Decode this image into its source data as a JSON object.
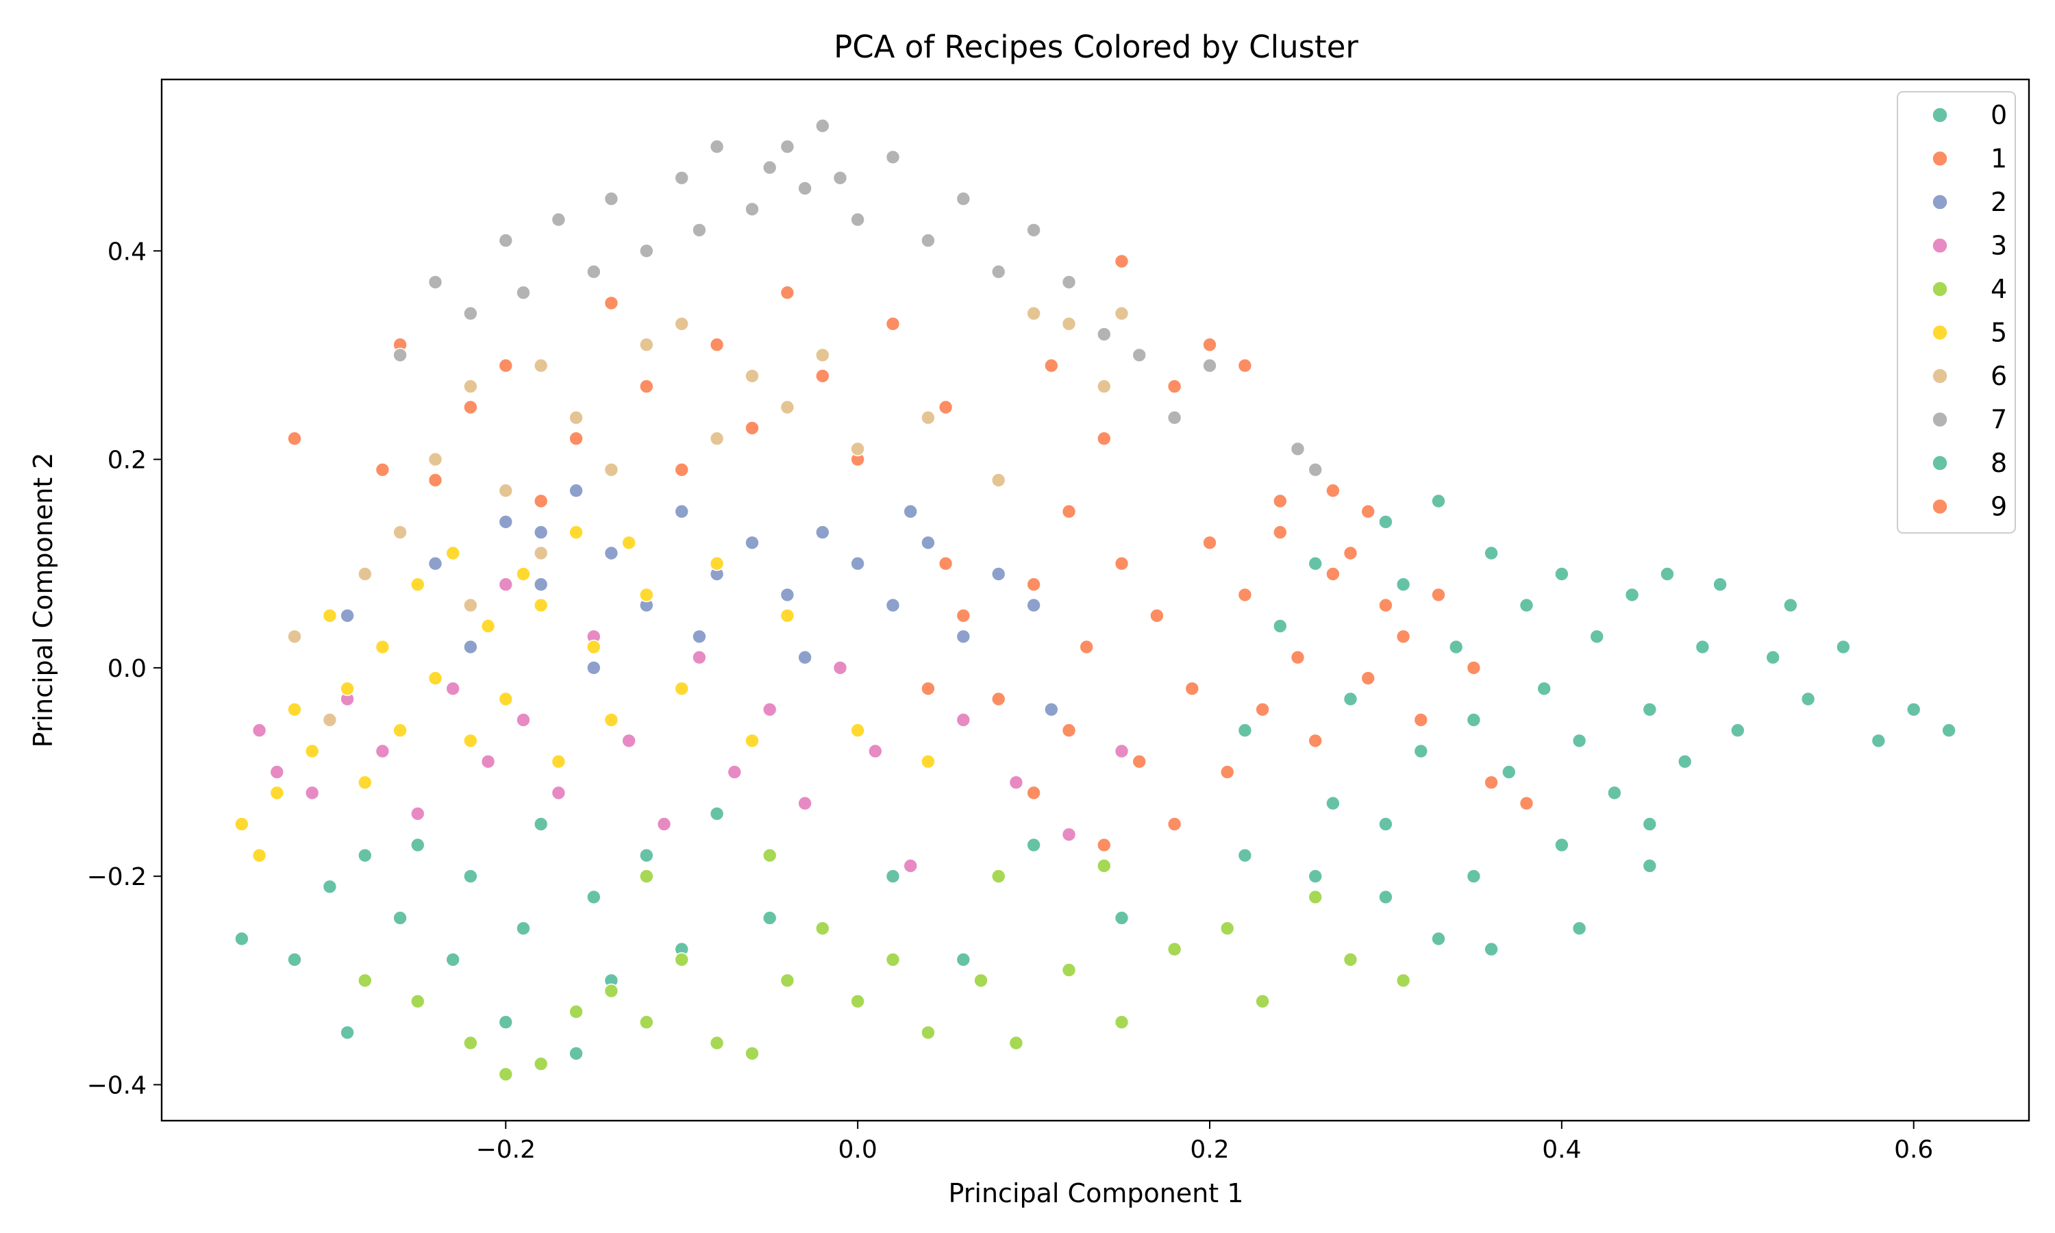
{
  "chart_data": {
    "type": "scatter",
    "title": "PCA of Recipes Colored by Cluster",
    "xlabel": "Principal Component 1",
    "ylabel": "Principal Component 2",
    "xlim": [
      -0.3955,
      0.6655
    ],
    "ylim": [
      -0.4345,
      0.5645
    ],
    "xticks": [
      -0.2,
      0.0,
      0.2,
      0.4,
      0.6
    ],
    "xtick_labels": [
      "−0.2",
      "0.0",
      "0.2",
      "0.4",
      "0.6"
    ],
    "yticks": [
      -0.4,
      -0.2,
      0.0,
      0.2,
      0.4
    ],
    "ytick_labels": [
      "−0.4",
      "−0.2",
      "0.0",
      "0.2",
      "0.4"
    ],
    "grid": false,
    "legend_position": "top-right",
    "point_edge_color": "#ffffff",
    "series": [
      {
        "name": "0",
        "color": "#66c2a5",
        "points": [
          [
            -0.35,
            -0.26
          ],
          [
            -0.32,
            -0.28
          ],
          [
            -0.29,
            -0.35
          ],
          [
            -0.3,
            -0.21
          ],
          [
            -0.28,
            -0.18
          ],
          [
            -0.26,
            -0.24
          ],
          [
            -0.25,
            -0.17
          ],
          [
            -0.23,
            -0.28
          ],
          [
            -0.22,
            -0.2
          ],
          [
            -0.2,
            -0.34
          ],
          [
            -0.19,
            -0.25
          ],
          [
            -0.18,
            -0.15
          ],
          [
            -0.16,
            -0.37
          ],
          [
            -0.15,
            -0.22
          ],
          [
            -0.14,
            -0.3
          ],
          [
            -0.12,
            -0.18
          ],
          [
            -0.1,
            -0.27
          ],
          [
            -0.08,
            -0.14
          ],
          [
            -0.05,
            -0.24
          ],
          [
            0.02,
            -0.2
          ],
          [
            0.06,
            -0.28
          ],
          [
            0.1,
            -0.17
          ],
          [
            0.15,
            -0.24
          ],
          [
            0.22,
            -0.18
          ],
          [
            0.26,
            -0.2
          ],
          [
            0.3,
            -0.22
          ],
          [
            0.33,
            -0.26
          ],
          [
            0.36,
            -0.27
          ],
          [
            0.41,
            -0.25
          ],
          [
            0.45,
            -0.19
          ]
        ]
      },
      {
        "name": "1",
        "color": "#fc8d62",
        "points": [
          [
            -0.32,
            0.22
          ],
          [
            -0.27,
            0.19
          ],
          [
            -0.26,
            0.31
          ],
          [
            -0.24,
            0.18
          ],
          [
            -0.22,
            0.25
          ],
          [
            -0.2,
            0.29
          ],
          [
            -0.18,
            0.16
          ],
          [
            -0.16,
            0.22
          ],
          [
            -0.14,
            0.35
          ],
          [
            -0.12,
            0.27
          ],
          [
            -0.1,
            0.19
          ],
          [
            -0.08,
            0.31
          ],
          [
            -0.06,
            0.23
          ],
          [
            -0.04,
            0.36
          ],
          [
            -0.02,
            0.28
          ],
          [
            0.0,
            0.2
          ],
          [
            0.02,
            0.33
          ],
          [
            0.05,
            0.25
          ],
          [
            0.08,
            0.38
          ],
          [
            0.11,
            0.29
          ],
          [
            0.14,
            0.22
          ],
          [
            0.15,
            0.39
          ],
          [
            0.18,
            0.27
          ],
          [
            0.2,
            0.31
          ],
          [
            0.22,
            0.29
          ],
          [
            0.24,
            0.16
          ],
          [
            0.27,
            0.17
          ],
          [
            0.29,
            0.15
          ],
          [
            0.05,
            0.1
          ],
          [
            0.12,
            0.15
          ]
        ]
      },
      {
        "name": "2",
        "color": "#8da0cb",
        "points": [
          [
            -0.29,
            0.05
          ],
          [
            -0.24,
            0.1
          ],
          [
            -0.2,
            0.14
          ],
          [
            -0.18,
            0.08
          ],
          [
            -0.16,
            0.17
          ],
          [
            -0.14,
            0.11
          ],
          [
            -0.12,
            0.06
          ],
          [
            -0.1,
            0.15
          ],
          [
            -0.08,
            0.09
          ],
          [
            -0.06,
            0.12
          ],
          [
            -0.04,
            0.07
          ],
          [
            -0.02,
            0.13
          ],
          [
            0.0,
            0.1
          ],
          [
            0.02,
            0.06
          ],
          [
            0.04,
            0.12
          ],
          [
            0.06,
            0.03
          ],
          [
            0.08,
            0.09
          ],
          [
            0.11,
            -0.04
          ],
          [
            -0.22,
            0.02
          ],
          [
            -0.15,
            0.0
          ],
          [
            -0.09,
            0.03
          ],
          [
            -0.03,
            0.01
          ],
          [
            0.03,
            0.15
          ],
          [
            -0.18,
            0.13
          ],
          [
            0.1,
            0.06
          ]
        ]
      },
      {
        "name": "3",
        "color": "#e78ac3",
        "points": [
          [
            -0.34,
            -0.06
          ],
          [
            -0.33,
            -0.1
          ],
          [
            -0.31,
            -0.12
          ],
          [
            -0.29,
            -0.03
          ],
          [
            -0.27,
            -0.08
          ],
          [
            -0.25,
            -0.14
          ],
          [
            -0.23,
            -0.02
          ],
          [
            -0.21,
            -0.09
          ],
          [
            -0.19,
            -0.05
          ],
          [
            -0.17,
            -0.12
          ],
          [
            -0.15,
            0.03
          ],
          [
            -0.13,
            -0.07
          ],
          [
            -0.11,
            -0.15
          ],
          [
            -0.09,
            0.01
          ],
          [
            -0.07,
            -0.1
          ],
          [
            -0.05,
            -0.04
          ],
          [
            -0.03,
            -0.13
          ],
          [
            -0.01,
            0.0
          ],
          [
            0.01,
            -0.08
          ],
          [
            0.03,
            -0.19
          ],
          [
            0.06,
            -0.05
          ],
          [
            0.09,
            -0.11
          ],
          [
            0.12,
            -0.16
          ],
          [
            0.15,
            -0.08
          ],
          [
            -0.2,
            0.08
          ]
        ]
      },
      {
        "name": "4",
        "color": "#a6d854",
        "points": [
          [
            -0.28,
            -0.3
          ],
          [
            -0.25,
            -0.32
          ],
          [
            -0.22,
            -0.36
          ],
          [
            -0.2,
            -0.39
          ],
          [
            -0.18,
            -0.38
          ],
          [
            -0.16,
            -0.33
          ],
          [
            -0.14,
            -0.31
          ],
          [
            -0.12,
            -0.34
          ],
          [
            -0.1,
            -0.28
          ],
          [
            -0.08,
            -0.36
          ],
          [
            -0.06,
            -0.37
          ],
          [
            -0.04,
            -0.3
          ],
          [
            -0.02,
            -0.25
          ],
          [
            0.0,
            -0.32
          ],
          [
            0.02,
            -0.28
          ],
          [
            0.04,
            -0.35
          ],
          [
            0.07,
            -0.3
          ],
          [
            0.09,
            -0.36
          ],
          [
            0.12,
            -0.29
          ],
          [
            0.15,
            -0.34
          ],
          [
            0.18,
            -0.27
          ],
          [
            0.21,
            -0.25
          ],
          [
            0.23,
            -0.32
          ],
          [
            0.26,
            -0.22
          ],
          [
            0.28,
            -0.28
          ],
          [
            0.31,
            -0.3
          ],
          [
            -0.05,
            -0.18
          ],
          [
            0.08,
            -0.2
          ],
          [
            0.14,
            -0.19
          ],
          [
            -0.12,
            -0.2
          ]
        ]
      },
      {
        "name": "5",
        "color": "#ffd92f",
        "points": [
          [
            -0.35,
            -0.15
          ],
          [
            -0.34,
            -0.18
          ],
          [
            -0.33,
            -0.12
          ],
          [
            -0.32,
            -0.04
          ],
          [
            -0.31,
            -0.08
          ],
          [
            -0.3,
            0.05
          ],
          [
            -0.29,
            -0.02
          ],
          [
            -0.28,
            -0.11
          ],
          [
            -0.27,
            0.02
          ],
          [
            -0.26,
            -0.06
          ],
          [
            -0.25,
            0.08
          ],
          [
            -0.24,
            -0.01
          ],
          [
            -0.23,
            0.11
          ],
          [
            -0.22,
            -0.07
          ],
          [
            -0.21,
            0.04
          ],
          [
            -0.2,
            -0.03
          ],
          [
            -0.19,
            0.09
          ],
          [
            -0.18,
            0.06
          ],
          [
            -0.17,
            -0.09
          ],
          [
            -0.16,
            0.13
          ],
          [
            -0.15,
            0.02
          ],
          [
            -0.14,
            -0.05
          ],
          [
            -0.13,
            0.12
          ],
          [
            -0.12,
            0.07
          ],
          [
            -0.1,
            -0.02
          ],
          [
            -0.08,
            0.1
          ],
          [
            -0.06,
            -0.07
          ],
          [
            -0.04,
            0.05
          ],
          [
            0.0,
            -0.06
          ],
          [
            0.04,
            -0.09
          ]
        ]
      },
      {
        "name": "6",
        "color": "#e5c494",
        "points": [
          [
            -0.32,
            0.03
          ],
          [
            -0.3,
            -0.05
          ],
          [
            -0.28,
            0.09
          ],
          [
            -0.26,
            0.13
          ],
          [
            -0.24,
            0.2
          ],
          [
            -0.22,
            0.27
          ],
          [
            -0.2,
            0.17
          ],
          [
            -0.18,
            0.29
          ],
          [
            -0.16,
            0.24
          ],
          [
            -0.14,
            0.19
          ],
          [
            -0.12,
            0.31
          ],
          [
            -0.1,
            0.33
          ],
          [
            -0.08,
            0.22
          ],
          [
            -0.06,
            0.28
          ],
          [
            -0.04,
            0.25
          ],
          [
            -0.02,
            0.3
          ],
          [
            0.0,
            0.21
          ],
          [
            0.04,
            0.24
          ],
          [
            0.08,
            0.18
          ],
          [
            0.12,
            0.33
          ],
          [
            0.14,
            0.27
          ],
          [
            0.15,
            0.34
          ],
          [
            -0.22,
            0.06
          ],
          [
            -0.18,
            0.11
          ],
          [
            0.1,
            0.34
          ]
        ]
      },
      {
        "name": "7",
        "color": "#b3b3b3",
        "points": [
          [
            -0.26,
            0.3
          ],
          [
            -0.24,
            0.37
          ],
          [
            -0.22,
            0.34
          ],
          [
            -0.2,
            0.41
          ],
          [
            -0.19,
            0.36
          ],
          [
            -0.17,
            0.43
          ],
          [
            -0.15,
            0.38
          ],
          [
            -0.14,
            0.45
          ],
          [
            -0.12,
            0.4
          ],
          [
            -0.1,
            0.47
          ],
          [
            -0.09,
            0.42
          ],
          [
            -0.08,
            0.5
          ],
          [
            -0.06,
            0.44
          ],
          [
            -0.05,
            0.48
          ],
          [
            -0.04,
            0.5
          ],
          [
            -0.03,
            0.46
          ],
          [
            -0.02,
            0.52
          ],
          [
            -0.01,
            0.47
          ],
          [
            0.0,
            0.43
          ],
          [
            0.02,
            0.49
          ],
          [
            0.04,
            0.41
          ],
          [
            0.06,
            0.45
          ],
          [
            0.08,
            0.38
          ],
          [
            0.1,
            0.42
          ],
          [
            0.12,
            0.37
          ],
          [
            0.14,
            0.32
          ],
          [
            0.16,
            0.3
          ],
          [
            0.18,
            0.24
          ],
          [
            0.2,
            0.29
          ],
          [
            0.25,
            0.21
          ],
          [
            0.26,
            0.19
          ]
        ]
      },
      {
        "name": "8",
        "color": "#66c2a5",
        "points": [
          [
            0.24,
            0.04
          ],
          [
            0.26,
            0.1
          ],
          [
            0.28,
            -0.03
          ],
          [
            0.3,
            0.14
          ],
          [
            0.31,
            0.08
          ],
          [
            0.32,
            -0.08
          ],
          [
            0.33,
            0.16
          ],
          [
            0.34,
            0.02
          ],
          [
            0.35,
            -0.05
          ],
          [
            0.36,
            0.11
          ],
          [
            0.37,
            -0.1
          ],
          [
            0.38,
            0.06
          ],
          [
            0.39,
            -0.02
          ],
          [
            0.4,
            0.09
          ],
          [
            0.41,
            -0.07
          ],
          [
            0.42,
            0.03
          ],
          [
            0.43,
            -0.12
          ],
          [
            0.44,
            0.07
          ],
          [
            0.45,
            -0.04
          ],
          [
            0.46,
            0.09
          ],
          [
            0.47,
            -0.09
          ],
          [
            0.48,
            0.02
          ],
          [
            0.49,
            0.08
          ],
          [
            0.5,
            -0.06
          ],
          [
            0.52,
            0.01
          ],
          [
            0.53,
            0.06
          ],
          [
            0.54,
            -0.03
          ],
          [
            0.56,
            0.02
          ],
          [
            0.58,
            -0.07
          ],
          [
            0.6,
            -0.04
          ],
          [
            0.62,
            -0.06
          ],
          [
            0.22,
            -0.06
          ],
          [
            0.27,
            -0.13
          ],
          [
            0.3,
            -0.15
          ],
          [
            0.35,
            -0.2
          ],
          [
            0.4,
            -0.17
          ],
          [
            0.45,
            -0.15
          ]
        ]
      },
      {
        "name": "9",
        "color": "#fc8d62",
        "points": [
          [
            0.06,
            0.05
          ],
          [
            0.08,
            -0.03
          ],
          [
            0.1,
            0.08
          ],
          [
            0.12,
            -0.06
          ],
          [
            0.13,
            0.02
          ],
          [
            0.15,
            0.1
          ],
          [
            0.16,
            -0.09
          ],
          [
            0.17,
            0.05
          ],
          [
            0.19,
            -0.02
          ],
          [
            0.2,
            0.12
          ],
          [
            0.21,
            -0.1
          ],
          [
            0.22,
            0.07
          ],
          [
            0.23,
            -0.04
          ],
          [
            0.24,
            0.13
          ],
          [
            0.25,
            0.01
          ],
          [
            0.26,
            -0.07
          ],
          [
            0.27,
            0.09
          ],
          [
            0.28,
            0.11
          ],
          [
            0.29,
            -0.01
          ],
          [
            0.3,
            0.06
          ],
          [
            0.31,
            0.03
          ],
          [
            0.32,
            -0.05
          ],
          [
            0.33,
            0.07
          ],
          [
            0.35,
            0.0
          ],
          [
            0.36,
            -0.11
          ],
          [
            0.38,
            -0.13
          ],
          [
            0.18,
            -0.15
          ],
          [
            0.14,
            -0.17
          ],
          [
            0.1,
            -0.12
          ],
          [
            0.04,
            -0.02
          ]
        ]
      }
    ]
  }
}
